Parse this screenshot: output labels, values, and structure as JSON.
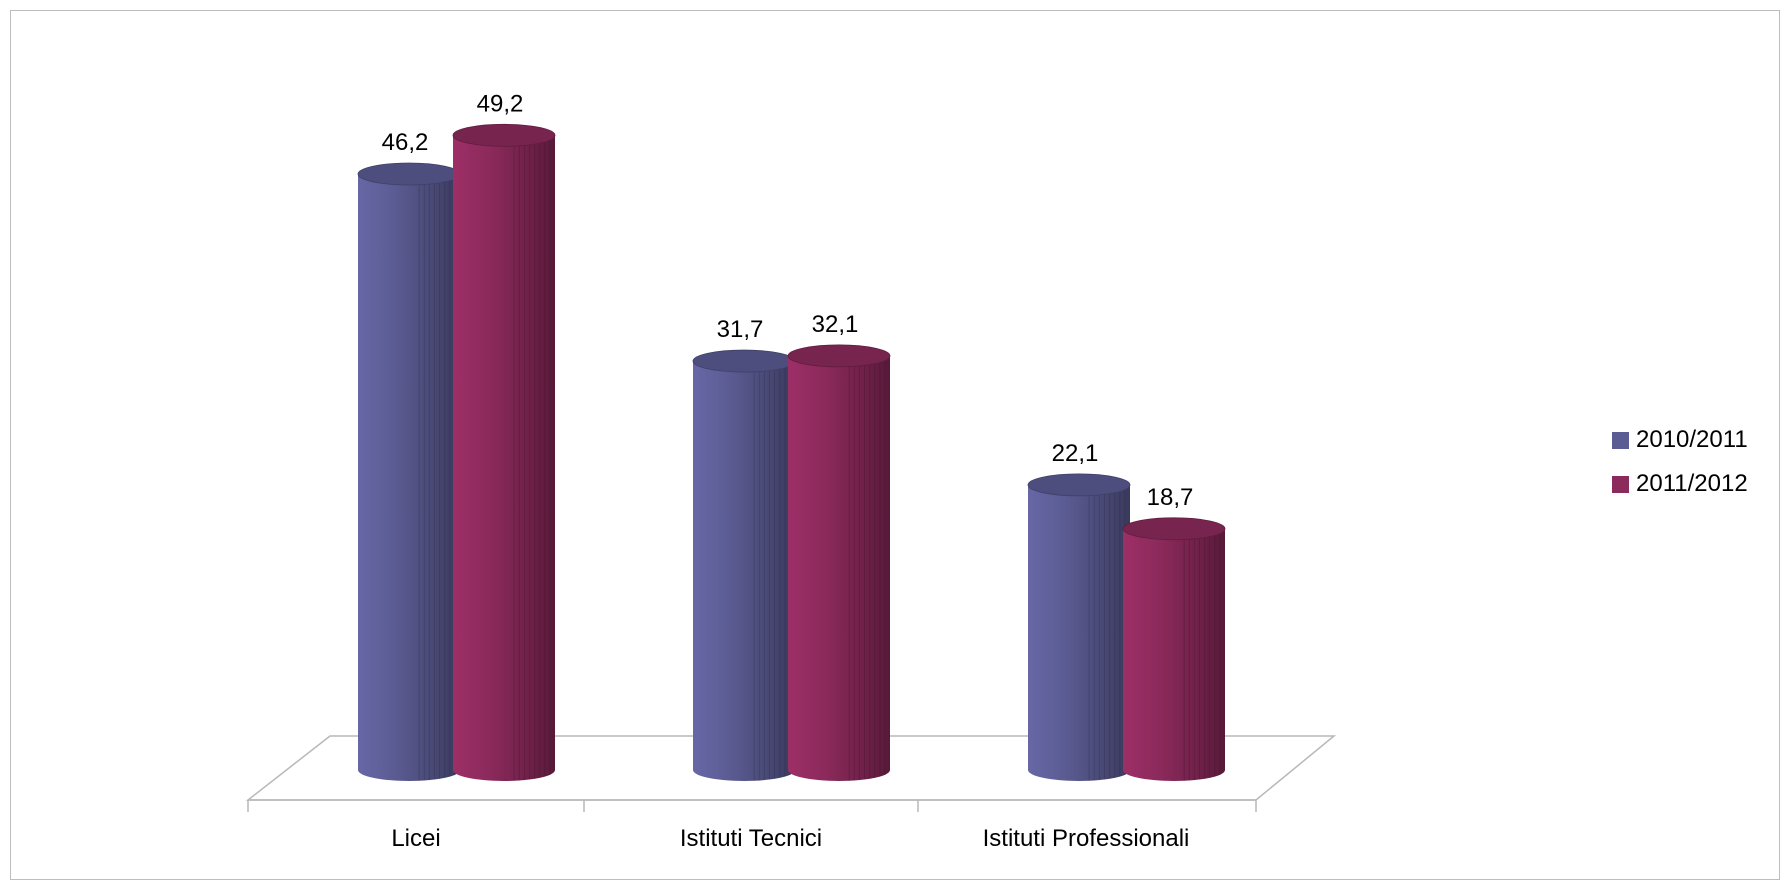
{
  "chart_data": {
    "type": "bar",
    "title": "",
    "xlabel": "",
    "ylabel": "",
    "categories": [
      "Licei",
      "Istituti Tecnici",
      "Istituti Professionali"
    ],
    "series": [
      {
        "name": "2010/2011",
        "values": [
          46.2,
          31.7,
          22.1
        ],
        "labels": [
          "46,2",
          "31,7",
          "22,1"
        ],
        "color": "#5c5c94"
      },
      {
        "name": "2011/2012",
        "values": [
          49.2,
          32.1,
          18.7
        ],
        "labels": [
          "49,2",
          "32,1",
          "18,7"
        ],
        "color": "#8c2a5c"
      }
    ],
    "ylim": [
      0,
      50
    ],
    "grid": false,
    "legend_position": "right",
    "bar_shape": "cylinder"
  }
}
